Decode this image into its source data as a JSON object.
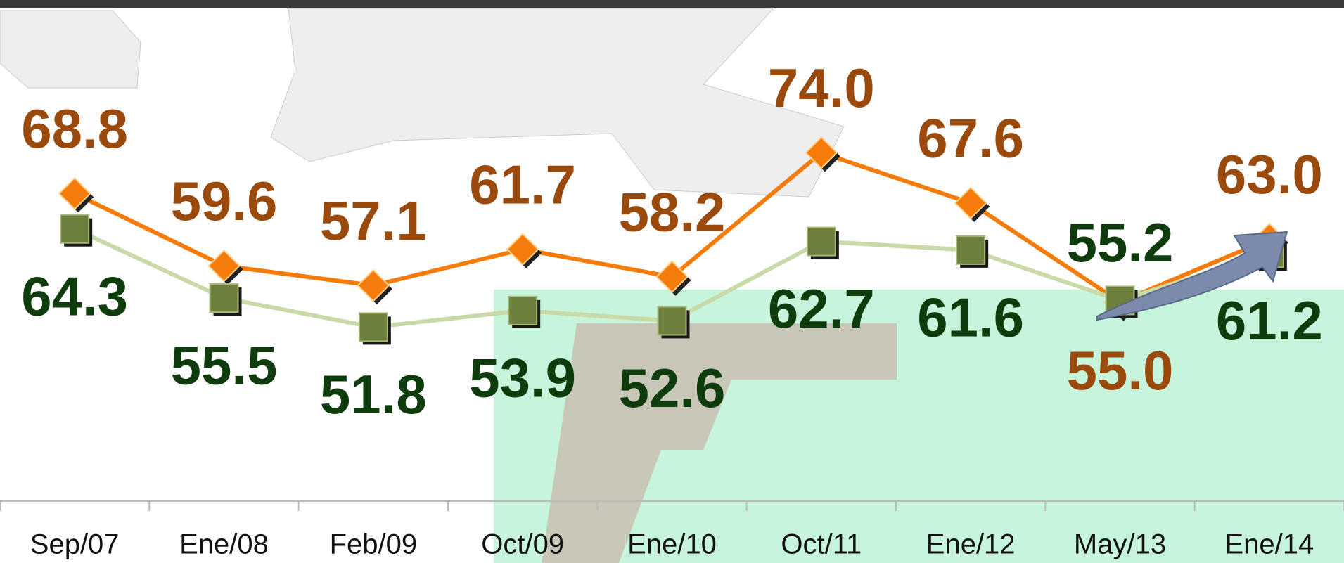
{
  "chart_data": {
    "type": "line",
    "categories": [
      "Sep/07",
      "Ene/08",
      "Feb/09",
      "Oct/09",
      "Ene/10",
      "Oct/11",
      "Ene/12",
      "May/13",
      "Ene/14"
    ],
    "series": [
      {
        "color": "#f57c0a",
        "label_color": "#9a4a0c",
        "marker": "diamond",
        "values": [
          68.8,
          59.6,
          57.1,
          61.7,
          58.2,
          74.0,
          67.6,
          55.0,
          63.0
        ],
        "value_labels": [
          "68.8",
          "59.6",
          "57.1",
          "61.7",
          "58.2",
          "74.0",
          "67.6",
          "55.0",
          "63.0"
        ]
      },
      {
        "color": "#c9d9a8",
        "label_color": "#0f3c0c",
        "marker": "square",
        "values": [
          64.3,
          55.5,
          51.8,
          53.9,
          52.6,
          62.7,
          61.6,
          55.2,
          61.2
        ],
        "value_labels": [
          "64.3",
          "55.5",
          "51.8",
          "53.9",
          "52.6",
          "62.7",
          "61.6",
          "55.2",
          "61.2"
        ]
      }
    ],
    "ylim": [
      30,
      93
    ]
  }
}
